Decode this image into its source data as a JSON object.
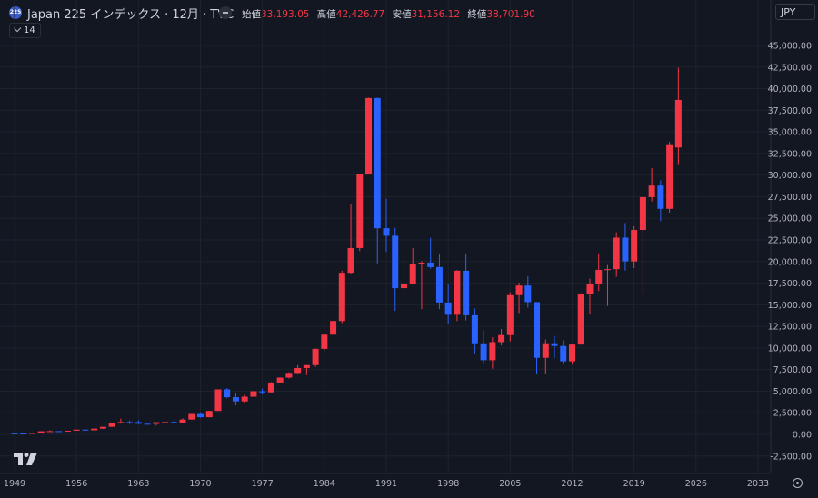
{
  "header": {
    "badge": "225",
    "title": "Japan 225 インデックス · 12月 · TVC",
    "ohlc": [
      {
        "label": "始値",
        "value": "33,193.05"
      },
      {
        "label": "高値",
        "value": "42,426.77"
      },
      {
        "label": "安値",
        "value": "31,156.12"
      },
      {
        "label": "終値",
        "value": "38,701.90"
      }
    ],
    "indicator_count": "14",
    "currency": "JPY"
  },
  "colors": {
    "up": "#f23645",
    "down": "#2962ff",
    "background": "#131722",
    "grid": "#1e222d"
  },
  "chart_data": {
    "type": "candlestick",
    "interval": "12月",
    "y_ticks": [
      -2500,
      0,
      2500,
      5000,
      7500,
      10000,
      12500,
      15000,
      17500,
      20000,
      22500,
      25000,
      27500,
      30000,
      32500,
      35000,
      37500,
      40000,
      42500,
      45000
    ],
    "y_tick_labels": [
      "-2,500.00",
      "0.00",
      "2,500.00",
      "5,000.00",
      "7,500.00",
      "10,000.00",
      "12,500.00",
      "15,000.00",
      "17,500.00",
      "20,000.00",
      "22,500.00",
      "25,000.00",
      "27,500.00",
      "30,000.00",
      "32,500.00",
      "35,000.00",
      "37,500.00",
      "40,000.00",
      "42,500.00",
      "45,000.00"
    ],
    "x_ticks": [
      1949,
      1956,
      1963,
      1970,
      1977,
      1984,
      1991,
      1998,
      2005,
      2012,
      2019,
      2026,
      2033
    ],
    "x_tick_labels": [
      "1949",
      "1956",
      "1963",
      "1970",
      "1977",
      "1984",
      "1991",
      "1998",
      "2005",
      "2012",
      "2019",
      "2026",
      "2033"
    ],
    "candles": [
      {
        "year": 1949,
        "o": 130,
        "h": 180,
        "l": 90,
        "c": 110
      },
      {
        "year": 1950,
        "o": 110,
        "h": 120,
        "l": 85,
        "c": 100
      },
      {
        "year": 1951,
        "o": 100,
        "h": 170,
        "l": 95,
        "c": 165
      },
      {
        "year": 1952,
        "o": 165,
        "h": 370,
        "l": 160,
        "c": 360
      },
      {
        "year": 1953,
        "o": 360,
        "h": 470,
        "l": 300,
        "c": 375
      },
      {
        "year": 1954,
        "o": 375,
        "h": 380,
        "l": 320,
        "c": 355
      },
      {
        "year": 1955,
        "o": 355,
        "h": 430,
        "l": 350,
        "c": 425
      },
      {
        "year": 1956,
        "o": 425,
        "h": 550,
        "l": 420,
        "c": 550
      },
      {
        "year": 1957,
        "o": 550,
        "h": 600,
        "l": 470,
        "c": 475
      },
      {
        "year": 1958,
        "o": 475,
        "h": 670,
        "l": 470,
        "c": 665
      },
      {
        "year": 1959,
        "o": 665,
        "h": 880,
        "l": 640,
        "c": 875
      },
      {
        "year": 1960,
        "o": 875,
        "h": 1360,
        "l": 870,
        "c": 1355
      },
      {
        "year": 1961,
        "o": 1355,
        "h": 1830,
        "l": 1250,
        "c": 1430
      },
      {
        "year": 1962,
        "o": 1430,
        "h": 1600,
        "l": 1200,
        "c": 1420
      },
      {
        "year": 1963,
        "o": 1420,
        "h": 1640,
        "l": 1200,
        "c": 1225
      },
      {
        "year": 1964,
        "o": 1225,
        "h": 1370,
        "l": 1200,
        "c": 1215
      },
      {
        "year": 1965,
        "o": 1215,
        "h": 1420,
        "l": 1020,
        "c": 1415
      },
      {
        "year": 1966,
        "o": 1415,
        "h": 1590,
        "l": 1400,
        "c": 1430
      },
      {
        "year": 1967,
        "o": 1430,
        "h": 1510,
        "l": 1270,
        "c": 1285
      },
      {
        "year": 1968,
        "o": 1285,
        "h": 1860,
        "l": 1270,
        "c": 1715
      },
      {
        "year": 1969,
        "o": 1715,
        "h": 2360,
        "l": 1700,
        "c": 2360
      },
      {
        "year": 1970,
        "o": 2360,
        "h": 2540,
        "l": 1930,
        "c": 1985
      },
      {
        "year": 1971,
        "o": 1985,
        "h": 2750,
        "l": 1980,
        "c": 2715
      },
      {
        "year": 1972,
        "o": 2715,
        "h": 5210,
        "l": 2700,
        "c": 5205
      },
      {
        "year": 1973,
        "o": 5205,
        "h": 5360,
        "l": 4200,
        "c": 4305
      },
      {
        "year": 1974,
        "o": 4305,
        "h": 4790,
        "l": 3350,
        "c": 3820
      },
      {
        "year": 1975,
        "o": 3820,
        "h": 4570,
        "l": 3630,
        "c": 4360
      },
      {
        "year": 1976,
        "o": 4360,
        "h": 5010,
        "l": 4360,
        "c": 4990
      },
      {
        "year": 1977,
        "o": 4990,
        "h": 5290,
        "l": 4600,
        "c": 4865
      },
      {
        "year": 1978,
        "o": 4865,
        "h": 6040,
        "l": 4860,
        "c": 6000
      },
      {
        "year": 1979,
        "o": 6000,
        "h": 6590,
        "l": 5930,
        "c": 6570
      },
      {
        "year": 1980,
        "o": 6570,
        "h": 7190,
        "l": 6470,
        "c": 7115
      },
      {
        "year": 1981,
        "o": 7115,
        "h": 8020,
        "l": 6950,
        "c": 7680
      },
      {
        "year": 1982,
        "o": 7680,
        "h": 8020,
        "l": 6850,
        "c": 8015
      },
      {
        "year": 1983,
        "o": 8015,
        "h": 9900,
        "l": 7800,
        "c": 9895
      },
      {
        "year": 1984,
        "o": 9895,
        "h": 11580,
        "l": 9700,
        "c": 11540
      },
      {
        "year": 1985,
        "o": 11540,
        "h": 13130,
        "l": 11540,
        "c": 13115
      },
      {
        "year": 1986,
        "o": 13115,
        "h": 18940,
        "l": 12880,
        "c": 18700
      },
      {
        "year": 1987,
        "o": 18700,
        "h": 26650,
        "l": 18540,
        "c": 21560
      },
      {
        "year": 1988,
        "o": 21560,
        "h": 30160,
        "l": 21210,
        "c": 30160
      },
      {
        "year": 1989,
        "o": 30160,
        "h": 38960,
        "l": 30100,
        "c": 38915
      },
      {
        "year": 1990,
        "o": 38915,
        "h": 38950,
        "l": 19780,
        "c": 23850
      },
      {
        "year": 1991,
        "o": 23850,
        "h": 27270,
        "l": 21120,
        "c": 22980
      },
      {
        "year": 1992,
        "o": 22980,
        "h": 23900,
        "l": 14300,
        "c": 16920
      },
      {
        "year": 1993,
        "o": 16920,
        "h": 21280,
        "l": 16000,
        "c": 17420
      },
      {
        "year": 1994,
        "o": 17420,
        "h": 21570,
        "l": 17370,
        "c": 19720
      },
      {
        "year": 1995,
        "o": 19720,
        "h": 20050,
        "l": 14480,
        "c": 19870
      },
      {
        "year": 1996,
        "o": 19870,
        "h": 22750,
        "l": 19160,
        "c": 19360
      },
      {
        "year": 1997,
        "o": 19360,
        "h": 20910,
        "l": 14490,
        "c": 15260
      },
      {
        "year": 1998,
        "o": 15260,
        "h": 17350,
        "l": 12790,
        "c": 13840
      },
      {
        "year": 1999,
        "o": 13840,
        "h": 19000,
        "l": 13120,
        "c": 18935
      },
      {
        "year": 2000,
        "o": 18935,
        "h": 20830,
        "l": 13180,
        "c": 13785
      },
      {
        "year": 2001,
        "o": 13785,
        "h": 14560,
        "l": 9380,
        "c": 10540
      },
      {
        "year": 2002,
        "o": 10540,
        "h": 12080,
        "l": 8200,
        "c": 8580
      },
      {
        "year": 2003,
        "o": 8580,
        "h": 11240,
        "l": 7600,
        "c": 10675
      },
      {
        "year": 2004,
        "o": 10675,
        "h": 12190,
        "l": 10300,
        "c": 11490
      },
      {
        "year": 2005,
        "o": 11490,
        "h": 16440,
        "l": 10770,
        "c": 16110
      },
      {
        "year": 2006,
        "o": 16110,
        "h": 17560,
        "l": 14040,
        "c": 17225
      },
      {
        "year": 2007,
        "o": 17225,
        "h": 18300,
        "l": 14670,
        "c": 15305
      },
      {
        "year": 2008,
        "o": 15305,
        "h": 15150,
        "l": 6990,
        "c": 8860
      },
      {
        "year": 2009,
        "o": 8860,
        "h": 10980,
        "l": 7050,
        "c": 10545
      },
      {
        "year": 2010,
        "o": 10545,
        "h": 11410,
        "l": 8800,
        "c": 10230
      },
      {
        "year": 2011,
        "o": 10230,
        "h": 10890,
        "l": 8130,
        "c": 8455
      },
      {
        "year": 2012,
        "o": 8455,
        "h": 10440,
        "l": 8230,
        "c": 10395
      },
      {
        "year": 2013,
        "o": 10395,
        "h": 16320,
        "l": 10380,
        "c": 16290
      },
      {
        "year": 2014,
        "o": 16290,
        "h": 18030,
        "l": 13880,
        "c": 17450
      },
      {
        "year": 2015,
        "o": 17450,
        "h": 20950,
        "l": 16590,
        "c": 19035
      },
      {
        "year": 2016,
        "o": 19035,
        "h": 19590,
        "l": 14860,
        "c": 19115
      },
      {
        "year": 2017,
        "o": 19115,
        "h": 23380,
        "l": 18220,
        "c": 22765
      },
      {
        "year": 2018,
        "o": 22765,
        "h": 24450,
        "l": 18950,
        "c": 20015
      },
      {
        "year": 2019,
        "o": 20015,
        "h": 24090,
        "l": 19240,
        "c": 23655
      },
      {
        "year": 2020,
        "o": 23655,
        "h": 27600,
        "l": 16360,
        "c": 27445
      },
      {
        "year": 2021,
        "o": 27445,
        "h": 30800,
        "l": 26950,
        "c": 28790
      },
      {
        "year": 2022,
        "o": 28790,
        "h": 29390,
        "l": 24680,
        "c": 26095
      },
      {
        "year": 2023,
        "o": 26095,
        "h": 33850,
        "l": 25660,
        "c": 33465
      },
      {
        "year": 2024,
        "o": 33193.05,
        "h": 42426.77,
        "l": 31156.12,
        "c": 38701.9
      }
    ]
  }
}
